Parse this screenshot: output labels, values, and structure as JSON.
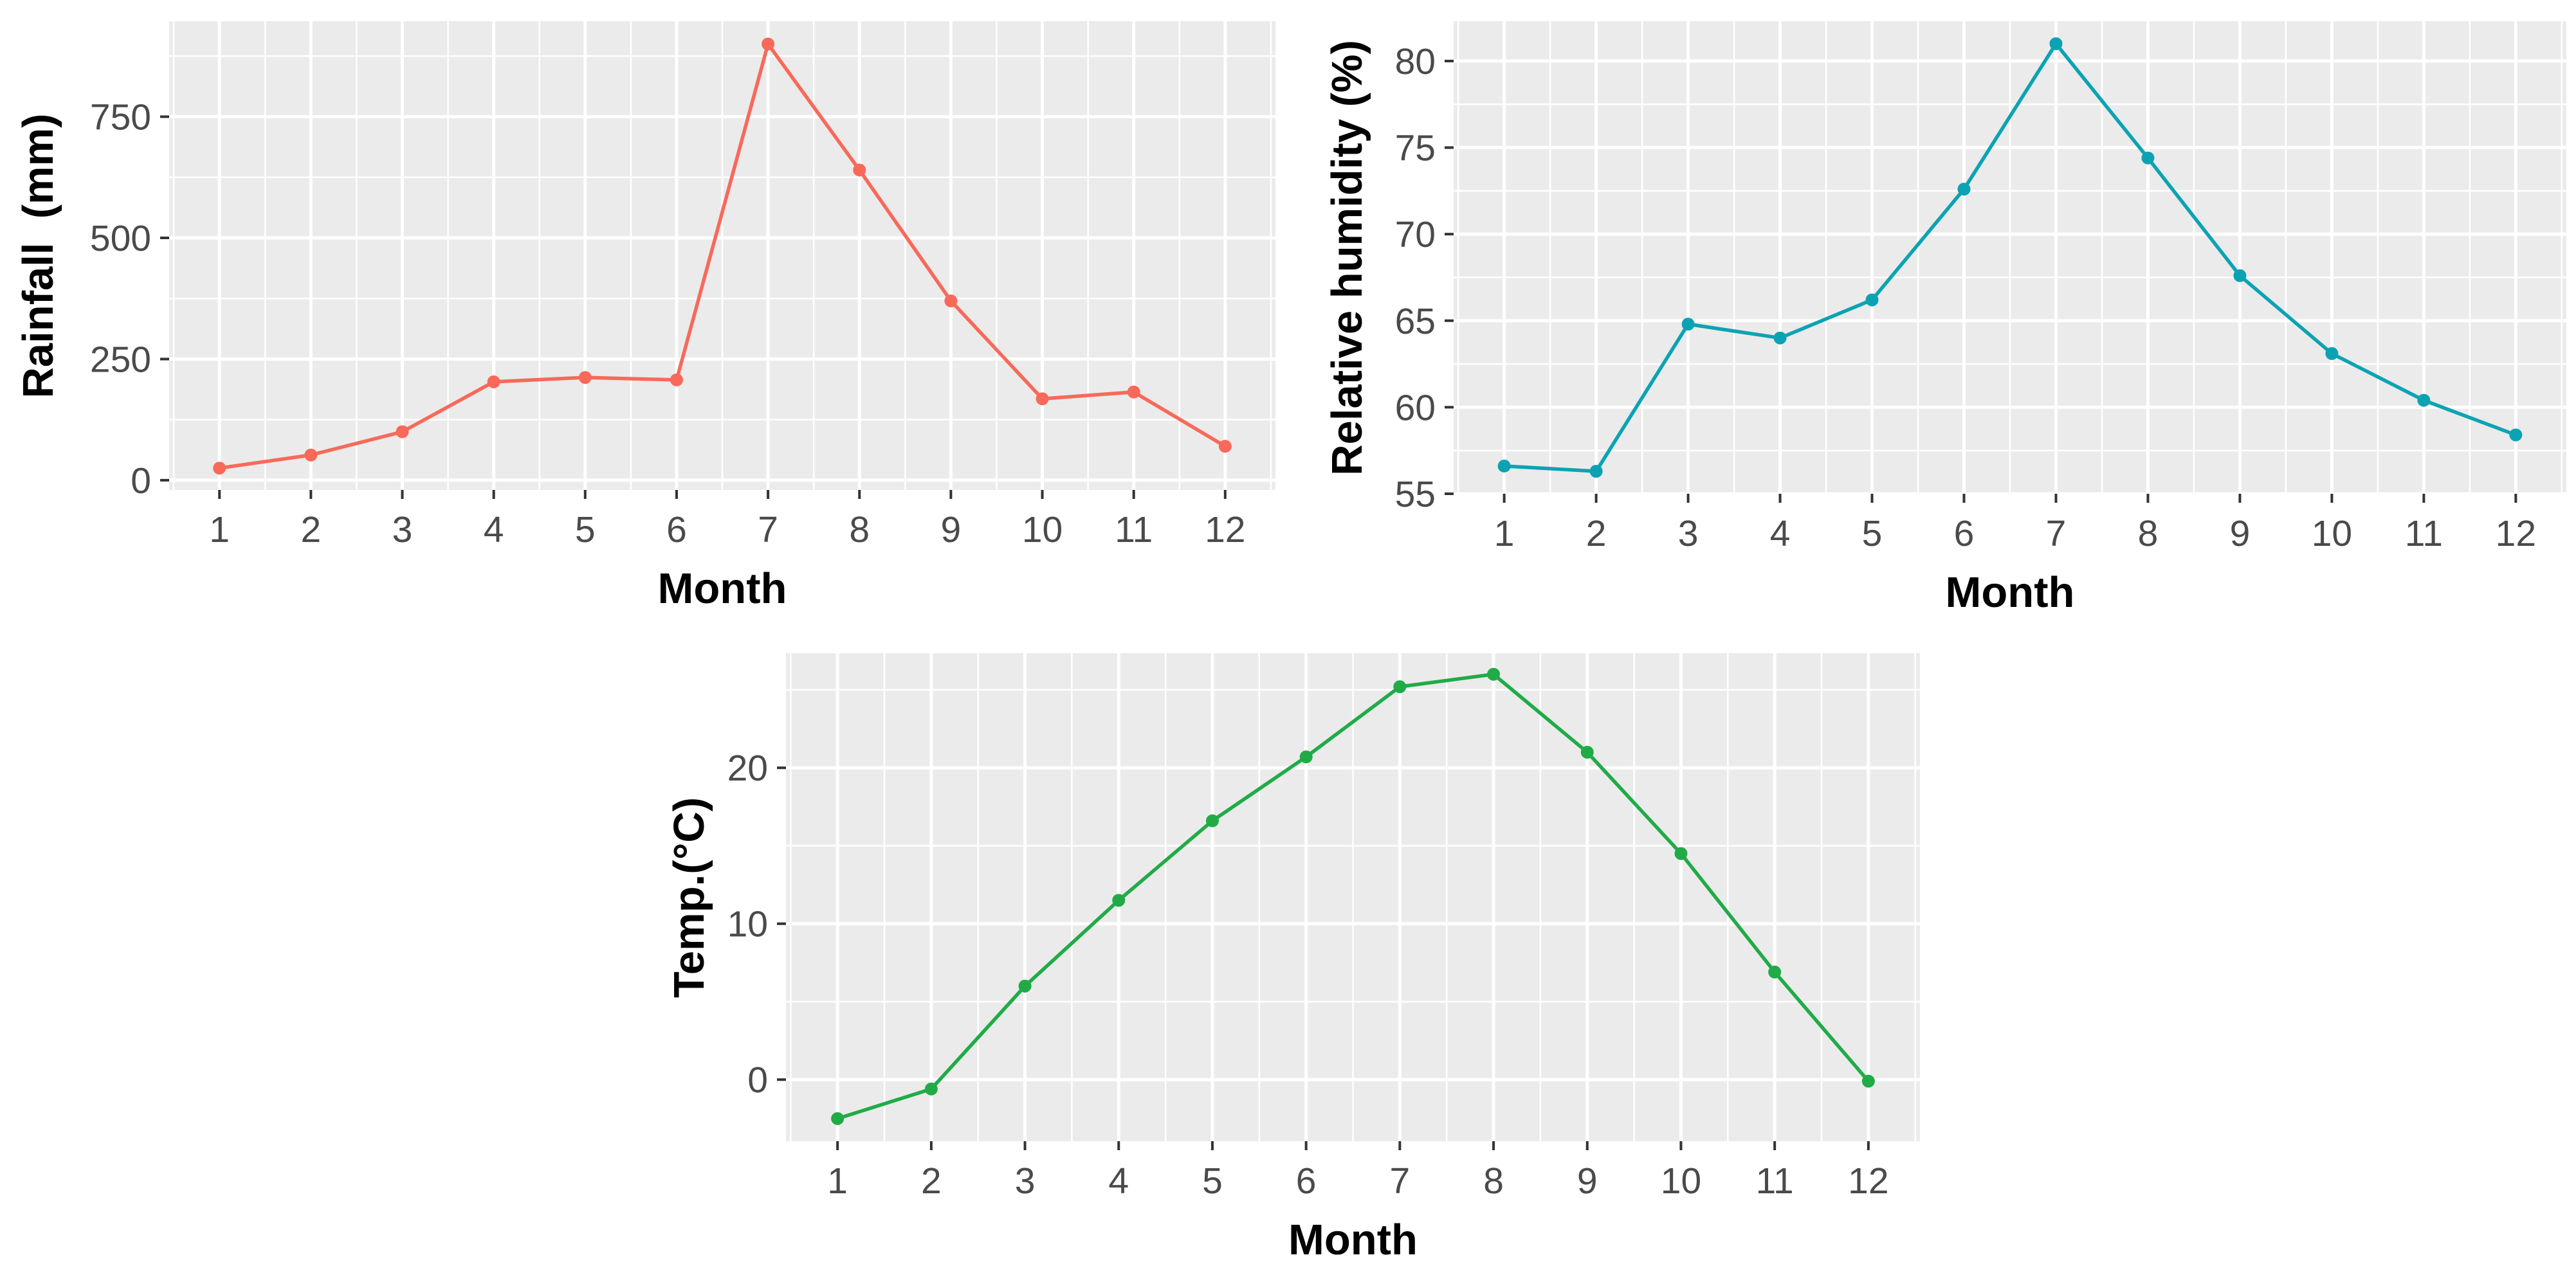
{
  "figure": {
    "background_color": "#ffffff",
    "panel_background_color": "#EBEBEB",
    "gridline_color": "#FFFFFF",
    "tick_label_color": "#4A4A4A",
    "tick_mark_color": "#333333",
    "axis_title_color": "#000000"
  },
  "chart_data": [
    {
      "type": "line",
      "title": "",
      "xlabel": "Month",
      "ylabel": "Rainfall  (mm)",
      "x": [
        1,
        2,
        3,
        4,
        5,
        6,
        7,
        8,
        9,
        10,
        11,
        12
      ],
      "values": [
        25,
        52,
        100,
        203,
        212,
        207,
        900,
        640,
        370,
        168,
        182,
        70
      ],
      "xticks": [
        1,
        2,
        3,
        4,
        5,
        6,
        7,
        8,
        9,
        10,
        11,
        12
      ],
      "yticks": [
        0,
        250,
        500,
        750
      ],
      "yminor": [
        125,
        375,
        625,
        875
      ],
      "ylim": [
        -20,
        947
      ],
      "xlim": [
        0.45,
        12.55
      ],
      "line_color": "#F8695A",
      "marker": "circle",
      "legend": "none",
      "grid": "on"
    },
    {
      "type": "line",
      "title": "",
      "xlabel": "Month",
      "ylabel": "Relative humidity (%)",
      "x": [
        1,
        2,
        3,
        4,
        5,
        6,
        7,
        8,
        9,
        10,
        11,
        12
      ],
      "values": [
        56.6,
        56.3,
        64.8,
        64.0,
        66.2,
        72.6,
        81.0,
        74.4,
        67.6,
        63.1,
        60.4,
        58.4
      ],
      "xticks": [
        1,
        2,
        3,
        4,
        5,
        6,
        7,
        8,
        9,
        10,
        11,
        12
      ],
      "yticks": [
        55,
        60,
        65,
        70,
        75,
        80
      ],
      "yminor": [
        57.5,
        62.5,
        67.5,
        72.5,
        77.5
      ],
      "ylim": [
        55.0,
        82.3
      ],
      "xlim": [
        0.45,
        12.55
      ],
      "line_color": "#0BA3B3",
      "marker": "circle",
      "legend": "none",
      "grid": "on"
    },
    {
      "type": "line",
      "title": "",
      "xlabel": "Month",
      "ylabel": "Temp.(°C)",
      "x": [
        1,
        2,
        3,
        4,
        5,
        6,
        7,
        8,
        9,
        10,
        11,
        12
      ],
      "values": [
        -2.5,
        -0.6,
        6.0,
        11.5,
        16.6,
        20.7,
        25.2,
        26.0,
        21.0,
        14.5,
        6.9,
        -0.1
      ],
      "xticks": [
        1,
        2,
        3,
        4,
        5,
        6,
        7,
        8,
        9,
        10,
        11,
        12
      ],
      "yticks": [
        0,
        10,
        20
      ],
      "yminor": [
        5,
        15,
        25
      ],
      "ylim": [
        -3.95,
        27.35
      ],
      "xlim": [
        0.45,
        12.55
      ],
      "line_color": "#20AB47",
      "marker": "circle",
      "legend": "none",
      "grid": "on"
    }
  ]
}
